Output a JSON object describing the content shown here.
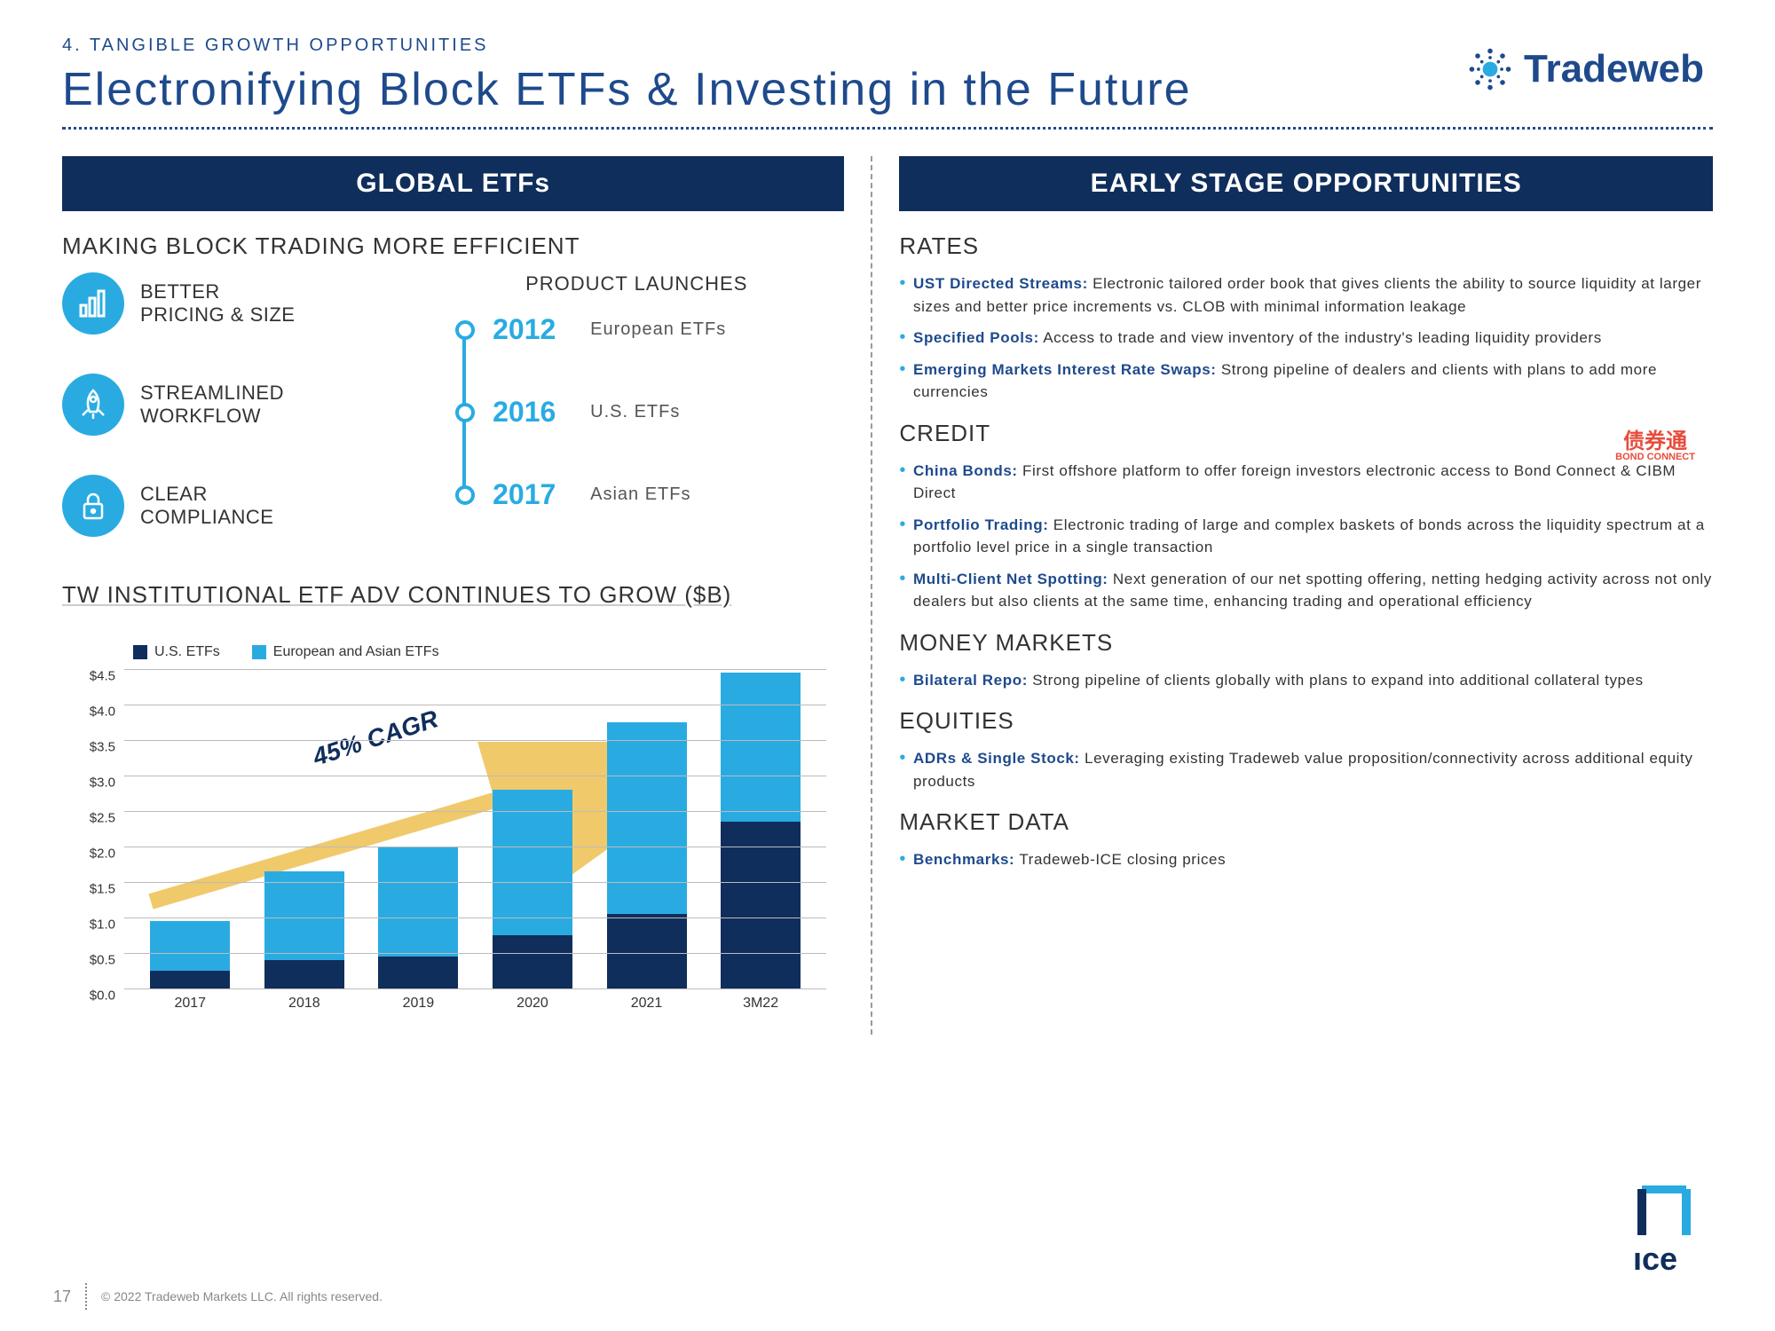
{
  "header": {
    "eyebrow": "4. TANGIBLE GROWTH OPPORTUNITIES",
    "title": "Electronifying Block ETFs & Investing in the Future",
    "logo_text": "Tradeweb"
  },
  "left": {
    "banner": "GLOBAL ETFs",
    "heading": "MAKING BLOCK TRADING MORE EFFICIENT",
    "benefits": [
      {
        "label": "BETTER\nPRICING & SIZE",
        "icon": "bars"
      },
      {
        "label": "STREAMLINED\nWORKFLOW",
        "icon": "rocket"
      },
      {
        "label": "CLEAR\nCOMPLIANCE",
        "icon": "lock"
      }
    ],
    "timeline_title": "PRODUCT LAUNCHES",
    "timeline": [
      {
        "year": "2012",
        "label": "European ETFs"
      },
      {
        "year": "2016",
        "label": "U.S. ETFs"
      },
      {
        "year": "2017",
        "label": "Asian ETFs"
      }
    ],
    "chart_heading": "TW INSTITUTIONAL ETF ADV CONTINUES TO GROW ($B)",
    "cagr_label": "45% CAGR",
    "chart": {
      "type": "stacked-bar",
      "series": [
        {
          "name": "U.S. ETFs",
          "color": "#0f2e5c"
        },
        {
          "name": "European and Asian ETFs",
          "color": "#29abe2"
        }
      ],
      "categories": [
        "2017",
        "2018",
        "2019",
        "2020",
        "2021",
        "3M22"
      ],
      "us_values": [
        0.25,
        0.4,
        0.45,
        0.75,
        1.05,
        2.35
      ],
      "intl_values": [
        0.7,
        1.25,
        1.55,
        2.05,
        2.7,
        2.1
      ],
      "ymax": 4.5,
      "ystep": 0.5,
      "y_ticks": [
        "$0.0",
        "$0.5",
        "$1.0",
        "$1.5",
        "$2.0",
        "$2.5",
        "$3.0",
        "$3.5",
        "$4.0",
        "$4.5"
      ],
      "arrow_color": "#f0c96b",
      "grid_color": "#bbbbbb",
      "axis_color": "#333333"
    }
  },
  "right": {
    "banner": "EARLY STAGE OPPORTUNITIES",
    "sections": {
      "rates": {
        "title": "RATES",
        "items": [
          {
            "bold": "UST Directed Streams:",
            "text": " Electronic tailored order book that gives clients the ability to source liquidity at larger sizes and better price increments vs. CLOB with minimal information leakage"
          },
          {
            "bold": "Specified Pools:",
            "text": " Access to trade and view inventory of the industry's leading liquidity providers"
          },
          {
            "bold": "Emerging Markets Interest Rate Swaps:",
            "text": " Strong pipeline of dealers and clients with plans to add more currencies"
          }
        ]
      },
      "credit": {
        "title": "CREDIT",
        "items": [
          {
            "bold": "China Bonds:",
            "text": " First offshore platform to offer foreign investors electronic access to Bond Connect & CIBM Direct"
          },
          {
            "bold": "Portfolio Trading:",
            "text": " Electronic trading of large and complex baskets of bonds across the liquidity spectrum at a portfolio level price in a single transaction"
          },
          {
            "bold": "Multi-Client Net Spotting:",
            "text": " Next generation of our net spotting offering, netting hedging activity across not only dealers but also clients at the same time, enhancing trading and operational efficiency"
          }
        ]
      },
      "money": {
        "title": "MONEY MARKETS",
        "items": [
          {
            "bold": "Bilateral Repo:",
            "text": " Strong pipeline of clients globally with plans to expand into additional collateral types"
          }
        ]
      },
      "equities": {
        "title": "EQUITIES",
        "items": [
          {
            "bold": "ADRs & Single Stock:",
            "text": " Leveraging existing Tradeweb value proposition/connectivity across additional equity products"
          }
        ]
      },
      "market_data": {
        "title": "MARKET DATA",
        "items": [
          {
            "bold": "Benchmarks:",
            "text": " Tradeweb-ICE closing prices"
          }
        ]
      }
    },
    "bond_connect_cn": "债券通",
    "bond_connect_en": "BOND CONNECT",
    "ice_label": "ıce"
  },
  "footer": {
    "page": "17",
    "copyright": "© 2022 Tradeweb Markets LLC. All rights reserved."
  },
  "colors": {
    "navy": "#0f2e5c",
    "navy_text": "#1e4a8c",
    "cyan": "#29abe2",
    "arrow": "#f0c96b"
  }
}
